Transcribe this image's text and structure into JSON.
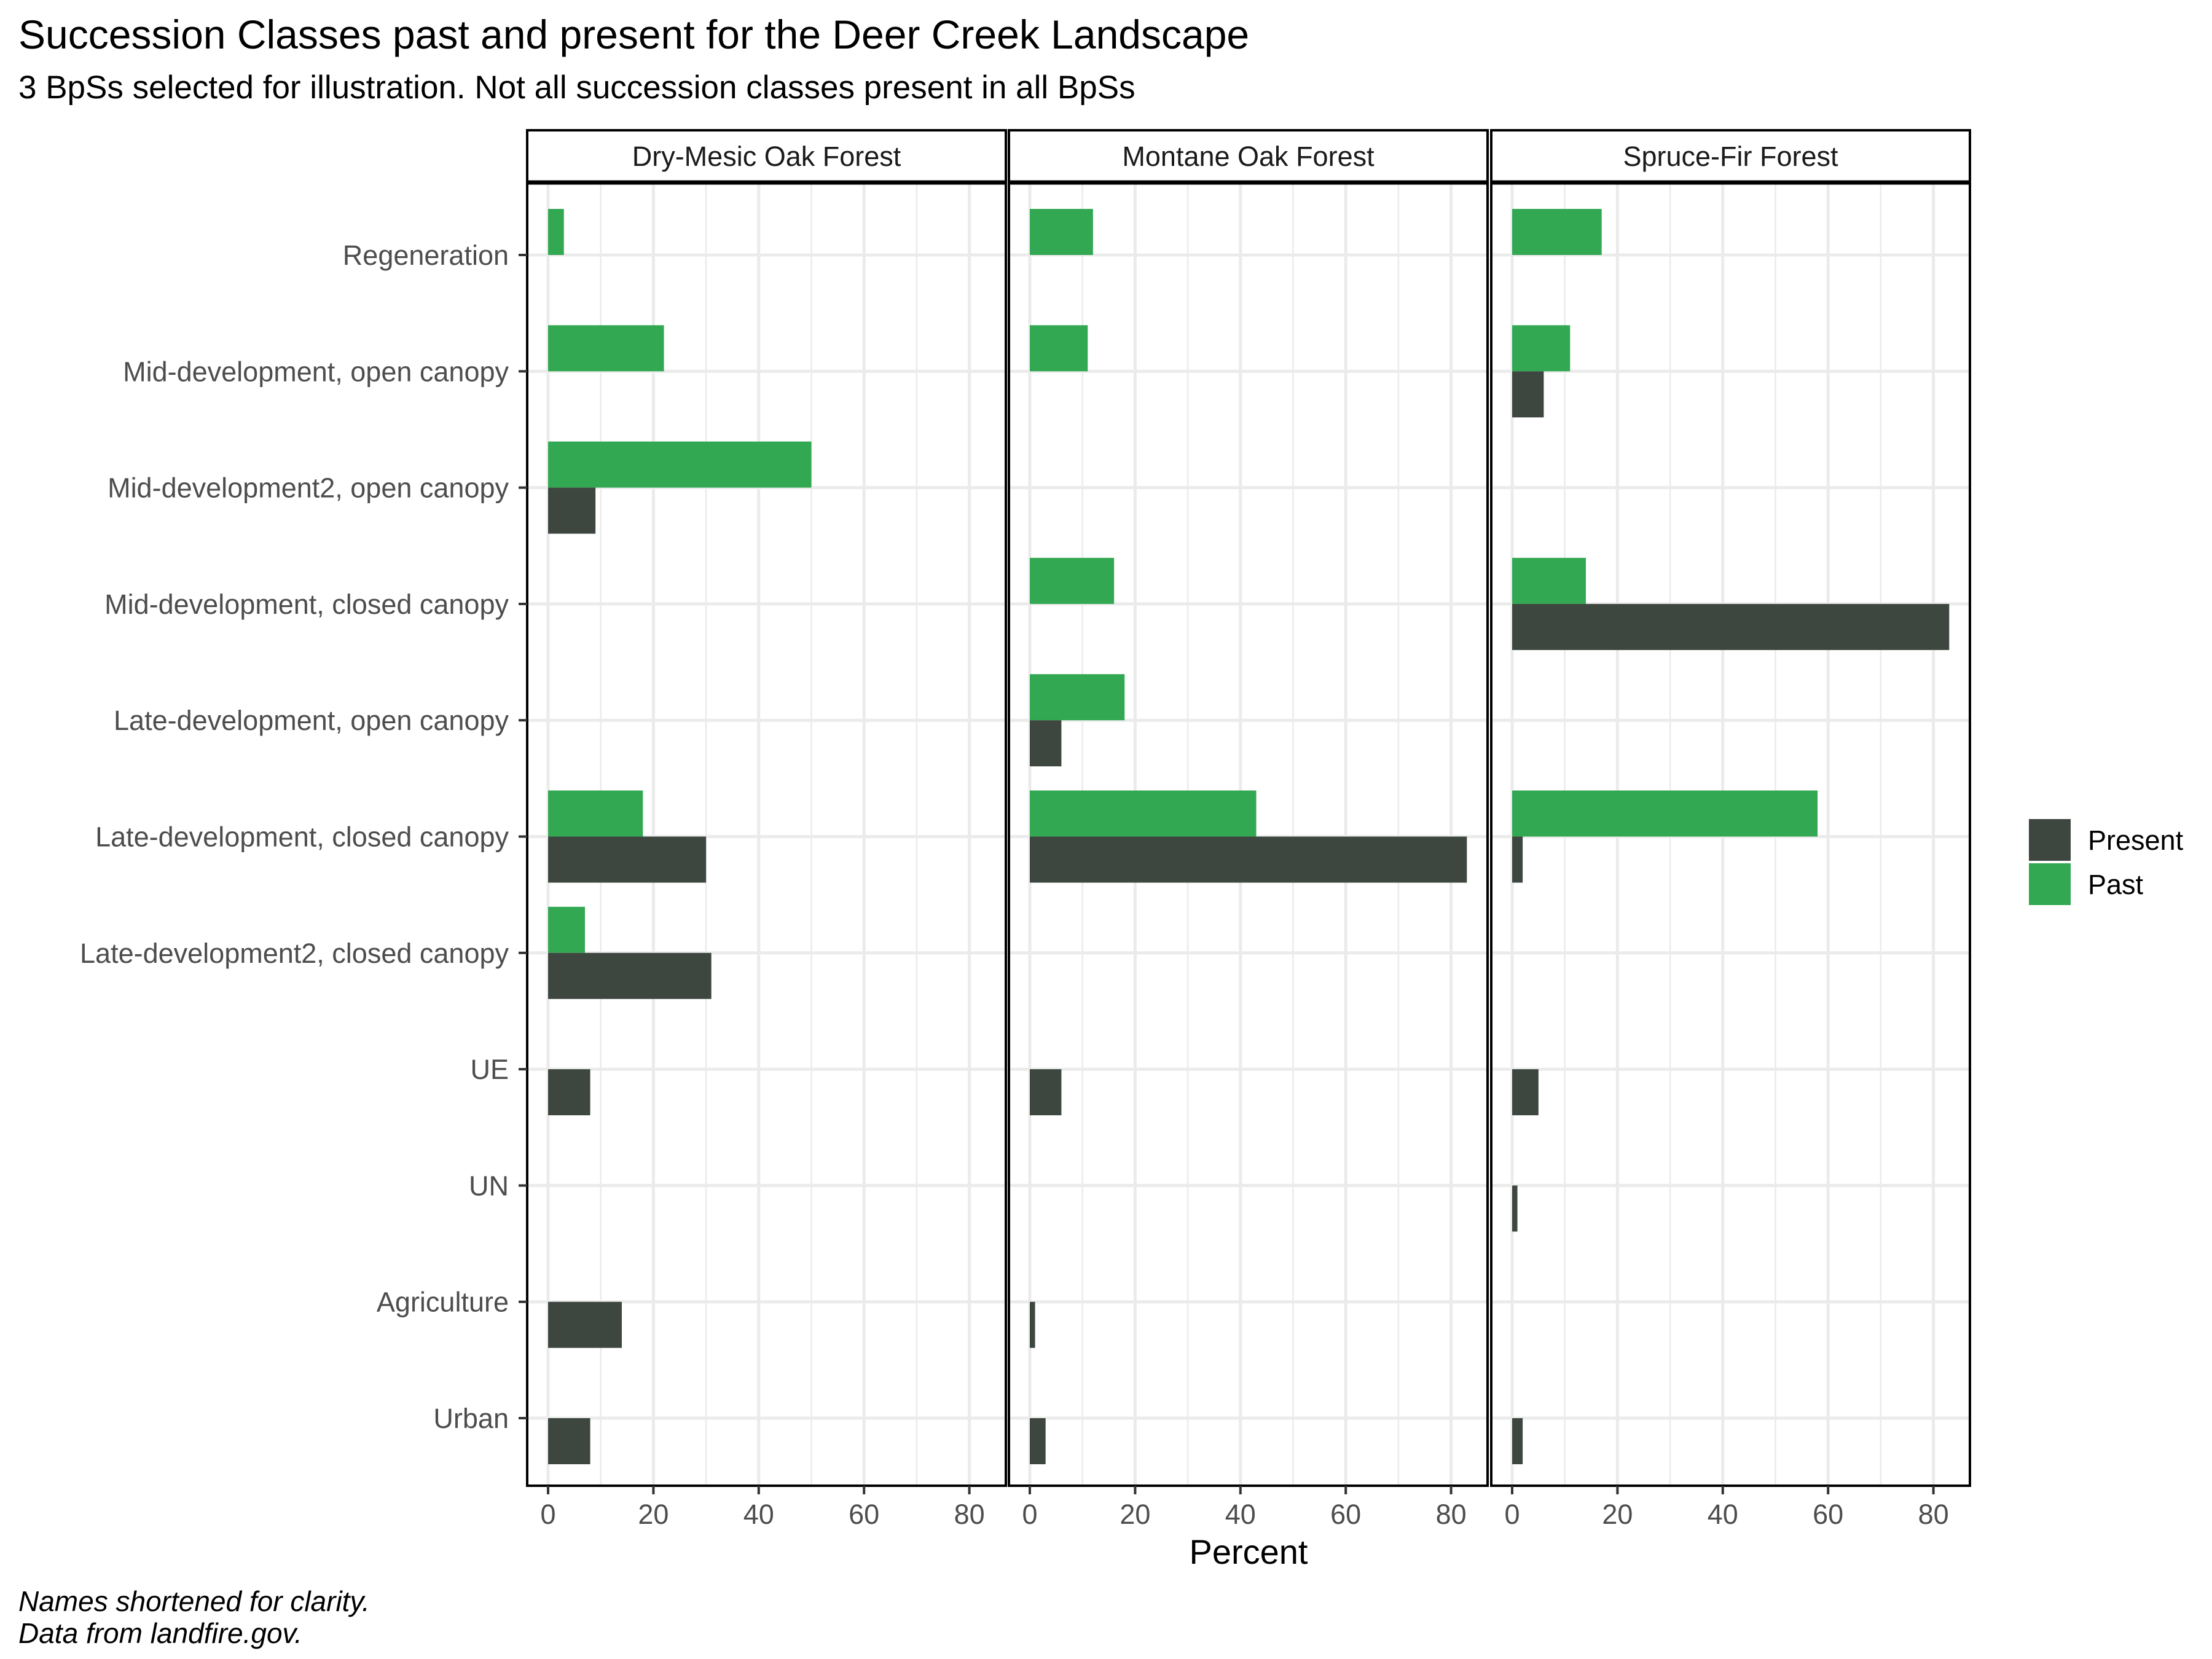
{
  "title": "Succession Classes past and present for the Deer Creek Landscape",
  "subtitle": "3 BpSs selected for illustration. Not all succession classes present in all BpSs",
  "caption": [
    "Names shortened for clarity.",
    "Data from landfire.gov."
  ],
  "colors": {
    "Present": "#3d4740",
    "Past": "#32a852",
    "grid": "#ebebeb"
  },
  "chart_data": {
    "type": "bar",
    "orientation": "horizontal",
    "xlabel": "Percent",
    "xlim": [
      0,
      85
    ],
    "xticks": [
      0,
      20,
      40,
      60,
      80
    ],
    "grid": true,
    "legend_position": "right",
    "legend": [
      "Present",
      "Past"
    ],
    "categories": [
      "Regeneration",
      "Mid-development, open canopy",
      "Mid-development2, open canopy",
      "Mid-development, closed canopy",
      "Late-development, open canopy",
      "Late-development, closed canopy",
      "Late-development2, closed canopy",
      "UE",
      "UN",
      "Agriculture",
      "Urban"
    ],
    "facets": [
      {
        "name": "Dry-Mesic Oak Forest",
        "series": [
          {
            "name": "Past",
            "values": [
              3,
              22,
              50,
              null,
              null,
              18,
              7,
              null,
              null,
              null,
              null
            ]
          },
          {
            "name": "Present",
            "values": [
              null,
              null,
              9,
              null,
              null,
              30,
              31,
              8,
              null,
              14,
              8
            ]
          }
        ]
      },
      {
        "name": "Montane Oak Forest",
        "series": [
          {
            "name": "Past",
            "values": [
              12,
              11,
              null,
              16,
              18,
              43,
              null,
              null,
              null,
              null,
              null
            ]
          },
          {
            "name": "Present",
            "values": [
              null,
              null,
              null,
              null,
              6,
              83,
              null,
              6,
              null,
              1,
              3
            ]
          }
        ]
      },
      {
        "name": "Spruce-Fir Forest",
        "series": [
          {
            "name": "Past",
            "values": [
              17,
              11,
              null,
              14,
              null,
              58,
              null,
              null,
              null,
              null,
              null
            ]
          },
          {
            "name": "Present",
            "values": [
              null,
              6,
              null,
              83,
              null,
              2,
              null,
              5,
              1,
              null,
              2
            ]
          }
        ]
      }
    ]
  }
}
